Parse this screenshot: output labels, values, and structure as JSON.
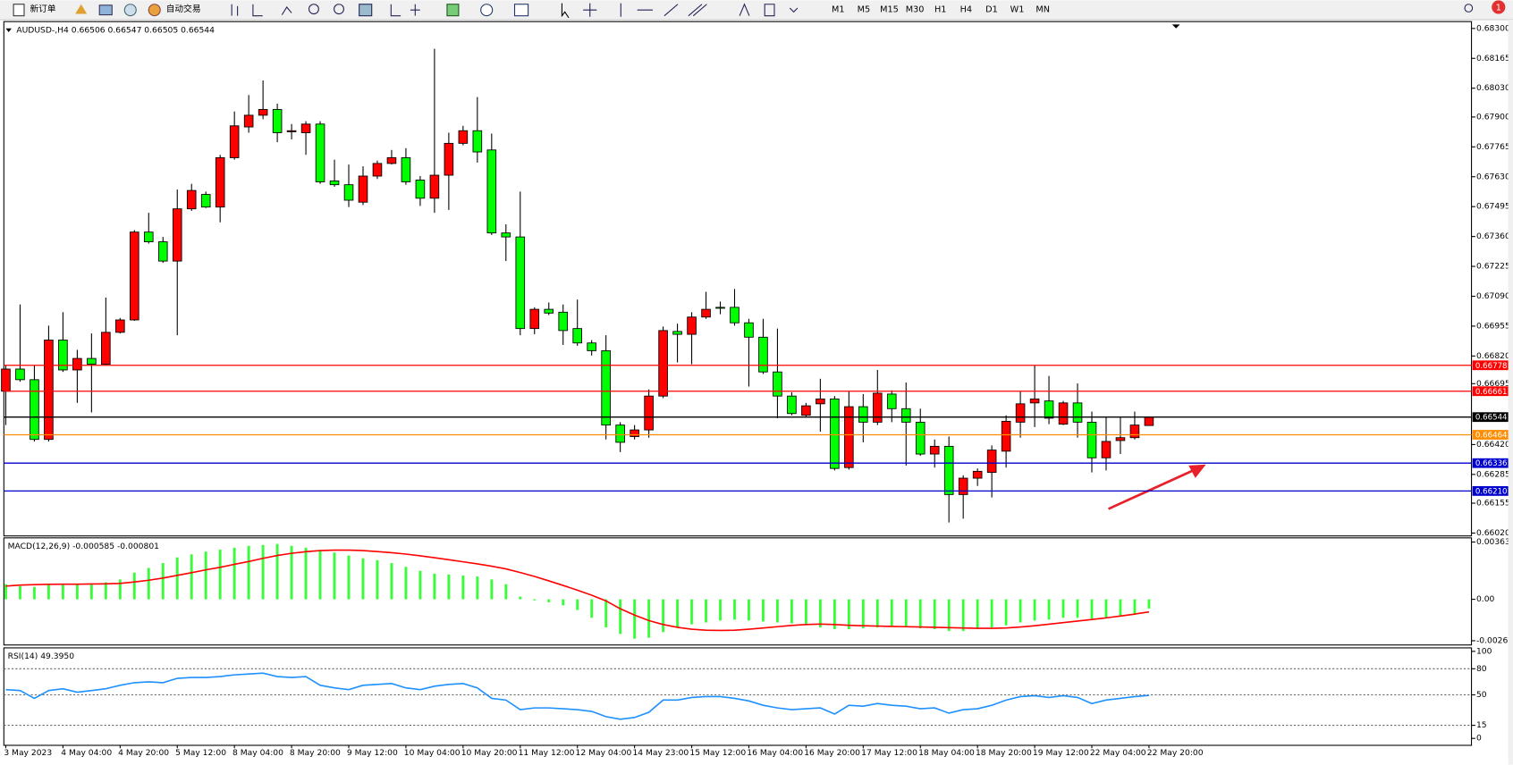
{
  "toolbar": {
    "buttons": [
      "新订单",
      "自动交易"
    ],
    "timeframes": [
      "M1",
      "M5",
      "M15",
      "M30",
      "H1",
      "H4",
      "D1",
      "W1",
      "MN"
    ],
    "badge": "1"
  },
  "chart_data": [
    {
      "type": "candlestick",
      "title": "AUDUSD-,H4  0.66506 0.66547 0.66505 0.66544",
      "up_color": "#ff0000",
      "down_color": "#00ff00",
      "categories": [
        "3 May 2023",
        null,
        null,
        null,
        "4 May 04:00",
        null,
        null,
        null,
        "4 May 20:00",
        null,
        null,
        null,
        "5 May 12:00",
        null,
        null,
        null,
        "8 May 04:00",
        null,
        null,
        null,
        "8 May 20:00",
        null,
        null,
        null,
        "9 May 12:00",
        null,
        null,
        null,
        "10 May 04:00",
        null,
        null,
        null,
        "10 May 20:00",
        null,
        null,
        null,
        "11 May 12:00",
        null,
        null,
        null,
        "12 May 04:00",
        null,
        null,
        null,
        "14 May 23:00",
        null,
        null,
        null,
        "15 May 12:00",
        null,
        null,
        null,
        "16 May 04:00",
        null,
        null,
        null,
        "16 May 20:00",
        null,
        null,
        null,
        "17 May 12:00",
        null,
        null,
        null,
        "18 May 04:00",
        null,
        null,
        null,
        "18 May 20:00",
        null,
        null,
        null,
        "19 May 12:00",
        null,
        null,
        null,
        "22 May 04:00",
        null,
        null,
        null,
        "22 May 20:00"
      ],
      "open": [
        0.66661,
        0.66761,
        0.66713,
        0.66443,
        0.66892,
        0.66757,
        0.66809,
        0.66783,
        0.66927,
        0.66983,
        0.6738,
        0.67336,
        0.67249,
        0.67485,
        0.6755,
        0.67493,
        0.67716,
        0.67855,
        0.67908,
        0.67934,
        0.67833,
        0.67829,
        0.67868,
        0.67611,
        0.67594,
        0.67515,
        0.67633,
        0.6769,
        0.67716,
        0.67615,
        0.67533,
        0.67637,
        0.67781,
        0.67838,
        0.67751,
        0.67376,
        0.67358,
        0.66944,
        0.67031,
        0.67018,
        0.66944,
        0.66879,
        0.66844,
        0.66508,
        0.66456,
        0.66486,
        0.66639,
        0.66931,
        0.66918,
        0.66996,
        0.6704,
        0.6704,
        0.6697,
        0.66905,
        0.66748,
        0.66639,
        0.66552,
        0.66604,
        0.66626,
        0.66316,
        0.66591,
        0.66521,
        0.66648,
        0.66582,
        0.66521,
        0.66377,
        0.66412,
        0.66194,
        0.66268,
        0.66294,
        0.6639,
        0.66521,
        0.66608,
        0.66617,
        0.66512,
        0.66608,
        0.66521,
        0.6636,
        0.66438,
        0.66451,
        0.66506
      ],
      "high": [
        0.66778,
        0.67053,
        0.66778,
        0.66957,
        0.67018,
        0.66848,
        0.66922,
        0.67084,
        0.66992,
        0.67389,
        0.67467,
        0.67358,
        0.67572,
        0.67598,
        0.67563,
        0.67729,
        0.67925,
        0.67999,
        0.68065,
        0.6796,
        0.67868,
        0.67881,
        0.67881,
        0.67707,
        0.67685,
        0.67677,
        0.67703,
        0.67751,
        0.67759,
        0.67633,
        0.68208,
        0.67829,
        0.6786,
        0.6799,
        0.67825,
        0.67415,
        0.67563,
        0.6704,
        0.67062,
        0.67053,
        0.67075,
        0.66892,
        0.66914,
        0.66521,
        0.66508,
        0.66669,
        0.66953,
        0.66966,
        0.67018,
        0.6711,
        0.67066,
        0.67123,
        0.66988,
        0.66988,
        0.66944,
        0.66656,
        0.66608,
        0.66717,
        0.66639,
        0.66661,
        0.66648,
        0.66757,
        0.66665,
        0.667,
        0.66582,
        0.66443,
        0.66456,
        0.66281,
        0.66312,
        0.66416,
        0.66552,
        0.66661,
        0.66778,
        0.6673,
        0.66617,
        0.66696,
        0.66569,
        0.66543,
        0.66543,
        0.66569,
        0.66547
      ],
      "low": [
        0.66508,
        0.66704,
        0.66434,
        0.66434,
        0.66748,
        0.66608,
        0.66565,
        0.66778,
        0.66922,
        0.66979,
        0.67328,
        0.67241,
        0.66914,
        0.67476,
        0.67489,
        0.67424,
        0.67707,
        0.67829,
        0.6789,
        0.67786,
        0.67799,
        0.67729,
        0.67598,
        0.67585,
        0.67493,
        0.67502,
        0.6762,
        0.67685,
        0.67594,
        0.67498,
        0.67467,
        0.6748,
        0.67772,
        0.67694,
        0.67367,
        0.67249,
        0.66914,
        0.66918,
        0.67005,
        0.6687,
        0.66866,
        0.66822,
        0.66443,
        0.66386,
        0.66443,
        0.66451,
        0.6663,
        0.66791,
        0.66783,
        0.66988,
        0.67009,
        0.66957,
        0.66682,
        0.66739,
        0.66539,
        0.66552,
        0.66543,
        0.66478,
        0.66303,
        0.66307,
        0.6643,
        0.66508,
        0.66521,
        0.66325,
        0.66369,
        0.66316,
        0.66068,
        0.66085,
        0.66233,
        0.66181,
        0.66316,
        0.66451,
        0.66499,
        0.66512,
        0.66508,
        0.66451,
        0.66294,
        0.66303,
        0.66377,
        0.66443,
        0.66505
      ],
      "close": [
        0.66761,
        0.66713,
        0.66443,
        0.66892,
        0.66757,
        0.66809,
        0.66783,
        0.66927,
        0.66983,
        0.6738,
        0.67336,
        0.67249,
        0.67485,
        0.67568,
        0.67493,
        0.67716,
        0.6786,
        0.67908,
        0.67934,
        0.67829,
        0.67838,
        0.67868,
        0.67607,
        0.67594,
        0.67524,
        0.67633,
        0.6769,
        0.67716,
        0.67607,
        0.67533,
        0.67637,
        0.67781,
        0.67838,
        0.67742,
        0.67376,
        0.67358,
        0.66944,
        0.67031,
        0.67014,
        0.66935,
        0.66879,
        0.66844,
        0.66508,
        0.6643,
        0.66486,
        0.66639,
        0.66935,
        0.66918,
        0.66996,
        0.67031,
        0.67036,
        0.6697,
        0.66905,
        0.66748,
        0.66639,
        0.6656,
        0.66595,
        0.66626,
        0.66312,
        0.66591,
        0.66521,
        0.66652,
        0.66582,
        0.66521,
        0.66377,
        0.66412,
        0.66194,
        0.66268,
        0.66299,
        0.66395,
        0.66525,
        0.66604,
        0.66626,
        0.66539,
        0.66608,
        0.66521,
        0.6636,
        0.66434,
        0.66451,
        0.66508,
        0.66544
      ],
      "ylim": [
        0.66007,
        0.68331
      ],
      "yticks": [
        {
          "value": 0.683,
          "label": "0.68300"
        },
        {
          "value": 0.68165,
          "label": "0.68165"
        },
        {
          "value": 0.6803,
          "label": "0.68030"
        },
        {
          "value": 0.679,
          "label": "0.67900"
        },
        {
          "value": 0.67765,
          "label": "0.67765"
        },
        {
          "value": 0.6763,
          "label": "0.67630"
        },
        {
          "value": 0.67495,
          "label": "0.67495"
        },
        {
          "value": 0.6736,
          "label": "0.67360"
        },
        {
          "value": 0.67225,
          "label": "0.67225"
        },
        {
          "value": 0.6709,
          "label": "0.67090"
        },
        {
          "value": 0.66955,
          "label": "0.66955"
        },
        {
          "value": 0.6682,
          "label": "0.66820"
        },
        {
          "value": 0.66695,
          "label": "0.66695"
        },
        {
          "value": 0.6642,
          "label": "0.66420"
        },
        {
          "value": 0.66285,
          "label": "0.66285"
        },
        {
          "value": 0.66155,
          "label": "0.66155"
        },
        {
          "value": 0.6602,
          "label": "0.66020"
        }
      ],
      "levels": [
        {
          "value": 0.66778,
          "label": "0.66778",
          "color": "#ff0000"
        },
        {
          "value": 0.66661,
          "label": "0.66661",
          "color": "#ff0000"
        },
        {
          "value": 0.66544,
          "label": "0.66544",
          "color": "#000000"
        },
        {
          "value": 0.66464,
          "label": "0.66464",
          "color": "#ff8c00"
        },
        {
          "value": 0.66336,
          "label": "0.66336",
          "color": "#0000cd"
        },
        {
          "value": 0.6621,
          "label": "0.66210",
          "color": "#0000cd"
        }
      ]
    },
    {
      "type": "bar",
      "title": "MACD(12,26,9) -0.000585 -0.000801",
      "ylim": [
        -0.0029,
        0.0039
      ],
      "yticks": [
        0.003635,
        {
          "value": 0,
          "label": "0.00"
        },
        -0.00263
      ],
      "series": [
        {
          "kind": "bar",
          "color": "#33ff33",
          "values": [
            0.00096,
            0.00084,
            0.00078,
            0.00096,
            0.00096,
            0.00096,
            0.00096,
            0.00108,
            0.00126,
            0.00169,
            0.00199,
            0.0023,
            0.00266,
            0.00285,
            0.00303,
            0.00315,
            0.00327,
            0.00339,
            0.00345,
            0.00351,
            0.00339,
            0.00327,
            0.00309,
            0.00297,
            0.00278,
            0.0026,
            0.00248,
            0.0023,
            0.00206,
            0.00181,
            0.00163,
            0.00157,
            0.00151,
            0.00145,
            0.00126,
            0.00096,
            0.00017,
            -7e-05,
            -0.00019,
            -0.00038,
            -0.00068,
            -0.00117,
            -0.00178,
            -0.0022,
            -0.0025,
            -0.00244,
            -0.00208,
            -0.00178,
            -0.00159,
            -0.00147,
            -0.00135,
            -0.00129,
            -0.00135,
            -0.00141,
            -0.00147,
            -0.00153,
            -0.00165,
            -0.00178,
            -0.0019,
            -0.0019,
            -0.00184,
            -0.00178,
            -0.00171,
            -0.00178,
            -0.00184,
            -0.0019,
            -0.00202,
            -0.00202,
            -0.0019,
            -0.00178,
            -0.00165,
            -0.00147,
            -0.00135,
            -0.00129,
            -0.00117,
            -0.00117,
            -0.00123,
            -0.00117,
            -0.00105,
            -0.00098,
            -0.000585
          ]
        },
        {
          "kind": "line",
          "color": "#ff0000",
          "values": [
            0.00084,
            0.0009,
            0.00093,
            0.00095,
            0.00096,
            0.00096,
            0.00097,
            0.00098,
            0.00101,
            0.0011,
            0.00121,
            0.00135,
            0.00152,
            0.00169,
            0.00187,
            0.00203,
            0.00222,
            0.0024,
            0.0026,
            0.00278,
            0.00292,
            0.00302,
            0.00309,
            0.00312,
            0.00312,
            0.00309,
            0.00303,
            0.00296,
            0.00287,
            0.00276,
            0.00264,
            0.00251,
            0.00238,
            0.00225,
            0.0021,
            0.00193,
            0.0017,
            0.00145,
            0.00117,
            0.00088,
            0.00058,
            0.00026,
            -0.0001,
            -0.0006,
            -0.001,
            -0.00135,
            -0.0016,
            -0.00178,
            -0.0019,
            -0.00196,
            -0.00198,
            -0.00196,
            -0.0019,
            -0.00182,
            -0.00174,
            -0.00166,
            -0.0016,
            -0.00157,
            -0.0016,
            -0.00165,
            -0.00168,
            -0.0017,
            -0.00172,
            -0.00174,
            -0.00176,
            -0.00178,
            -0.0018,
            -0.00182,
            -0.00184,
            -0.00184,
            -0.00182,
            -0.00176,
            -0.00168,
            -0.00158,
            -0.00148,
            -0.00138,
            -0.00128,
            -0.00118,
            -0.00106,
            -0.00094,
            -0.000801
          ]
        }
      ]
    },
    {
      "type": "line",
      "title": "RSI(14) 49.3950",
      "ylim": [
        -8,
        104
      ],
      "yticks": [
        100,
        80,
        50,
        15,
        0
      ],
      "levels": [
        80,
        50,
        15
      ],
      "series": [
        {
          "color": "#1e90ff",
          "values": [
            56,
            55,
            46,
            55,
            57,
            53,
            55,
            57,
            61,
            64,
            65,
            64,
            69,
            70,
            70,
            71,
            73,
            74,
            75,
            71,
            70,
            71,
            61,
            58,
            56,
            61,
            62,
            63,
            58,
            56,
            60,
            62,
            63,
            58,
            46,
            44,
            33,
            35,
            35,
            34,
            33,
            31,
            25,
            22,
            24,
            30,
            44,
            44,
            47,
            48,
            48,
            46,
            43,
            38,
            35,
            33,
            34,
            35,
            28,
            38,
            37,
            40,
            38,
            37,
            34,
            35,
            29,
            33,
            34,
            38,
            44,
            48,
            49,
            47,
            49,
            47,
            40,
            44,
            46,
            48,
            49.395
          ]
        }
      ]
    }
  ]
}
